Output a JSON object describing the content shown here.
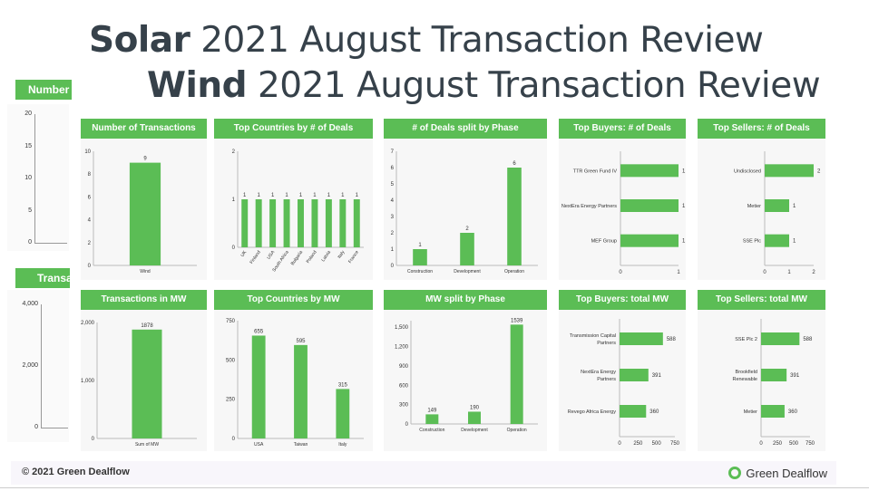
{
  "title_solar": {
    "bold": "Solar",
    "rest": " 2021 August Transaction Review"
  },
  "title_wind": {
    "bold": "Wind",
    "rest": " 2021 August Transaction Review"
  },
  "ghost_left": {
    "top_header": "Number",
    "top_ticks": [
      "20",
      "15",
      "10",
      "5",
      "0"
    ],
    "bottom_header": "Transa",
    "bottom_ticks": [
      "4,000",
      "2,000",
      "0"
    ]
  },
  "footer": {
    "copyright": "© 2021 Green Dealflow",
    "logo_text": "Green Dealflow"
  },
  "accent_color": "#5bbd55",
  "chart_data": [
    {
      "id": "num-transactions",
      "type": "bar",
      "title": "Number of Transactions",
      "categories": [
        "Wind"
      ],
      "values": [
        9
      ],
      "ylim": [
        0,
        10
      ],
      "yticks": [
        0,
        2,
        4,
        6,
        8,
        10
      ]
    },
    {
      "id": "top-countries-deals",
      "type": "bar",
      "title": "Top Countries by # of Deals",
      "categories": [
        "UK",
        "Finland",
        "USA",
        "South Africa",
        "Bulgaria",
        "Poland",
        "Latvia",
        "Italy",
        "France"
      ],
      "values": [
        1,
        1,
        1,
        1,
        1,
        1,
        1,
        1,
        1
      ],
      "ylim": [
        0,
        2
      ],
      "yticks": [
        0,
        1,
        2
      ]
    },
    {
      "id": "deals-phase",
      "type": "bar",
      "title": "# of Deals split by Phase",
      "categories": [
        "Construction",
        "Development",
        "Operation"
      ],
      "values": [
        1,
        2,
        6
      ],
      "ylim": [
        0,
        7
      ],
      "yticks": [
        0,
        1,
        2,
        3,
        4,
        5,
        6,
        7
      ]
    },
    {
      "id": "top-buyers-deals",
      "type": "bar",
      "orientation": "horizontal",
      "title": "Top Buyers: # of Deals",
      "categories": [
        "TTR Green Fund IV",
        "NextEra Energy Partners",
        "MEF Group"
      ],
      "values": [
        1,
        1,
        1
      ],
      "xlim": [
        0,
        1
      ],
      "xticks": [
        0,
        1
      ]
    },
    {
      "id": "top-sellers-deals",
      "type": "bar",
      "orientation": "horizontal",
      "title": "Top Sellers: # of Deals",
      "categories": [
        "Undisclosed",
        "Metier",
        "SSE Plc"
      ],
      "values": [
        2,
        1,
        1
      ],
      "xlim": [
        0,
        2
      ],
      "xticks": [
        0,
        1,
        2
      ]
    },
    {
      "id": "transactions-mw",
      "type": "bar",
      "title": "Transactions in MW",
      "categories": [
        "Sum of MW"
      ],
      "values": [
        1878
      ],
      "ylim": [
        0,
        2000
      ],
      "yticks": [
        0,
        1000,
        2000
      ],
      "ytick_labels": [
        "0",
        "1,000",
        "2,000"
      ]
    },
    {
      "id": "top-countries-mw",
      "type": "bar",
      "title": "Top Countries by MW",
      "categories": [
        "USA",
        "Taiwan",
        "Italy"
      ],
      "values": [
        655,
        595,
        315
      ],
      "ylim": [
        0,
        750
      ],
      "yticks": [
        0,
        250,
        500,
        750
      ]
    },
    {
      "id": "mw-phase",
      "type": "bar",
      "title": "MW split by Phase",
      "categories": [
        "Construction",
        "Development",
        "Operation"
      ],
      "values": [
        149,
        190,
        1539
      ],
      "ylim": [
        0,
        1600
      ],
      "yticks": [
        0,
        300,
        600,
        900,
        1200,
        1500
      ],
      "ytick_labels": [
        "0",
        "300",
        "600",
        "900",
        "1,200",
        "1,500"
      ]
    },
    {
      "id": "top-buyers-mw",
      "type": "bar",
      "orientation": "horizontal",
      "title": "Top Buyers: total MW",
      "categories": [
        "Transmission Capital Partners",
        "NextEra Energy Partners",
        "Revego Africa Energy"
      ],
      "category_lines": [
        [
          "Transmission Capital",
          "Partners"
        ],
        [
          "NextEra Energy",
          "Partners"
        ],
        [
          "Revego Africa Energy"
        ]
      ],
      "values": [
        588,
        391,
        360
      ],
      "xlim": [
        0,
        750
      ],
      "xticks": [
        0,
        250,
        500,
        750
      ]
    },
    {
      "id": "top-sellers-mw",
      "type": "bar",
      "orientation": "horizontal",
      "title": "Top Sellers: total MW",
      "categories": [
        "SSE Plc 2",
        "Brookfield Renewable",
        "Metier"
      ],
      "category_lines": [
        [
          "SSE Plc 2"
        ],
        [
          "Brookfield",
          "Renewable"
        ],
        [
          "Metier"
        ]
      ],
      "values": [
        588,
        391,
        360
      ],
      "xlim": [
        0,
        750
      ],
      "xticks": [
        0,
        250,
        500,
        750
      ]
    }
  ]
}
